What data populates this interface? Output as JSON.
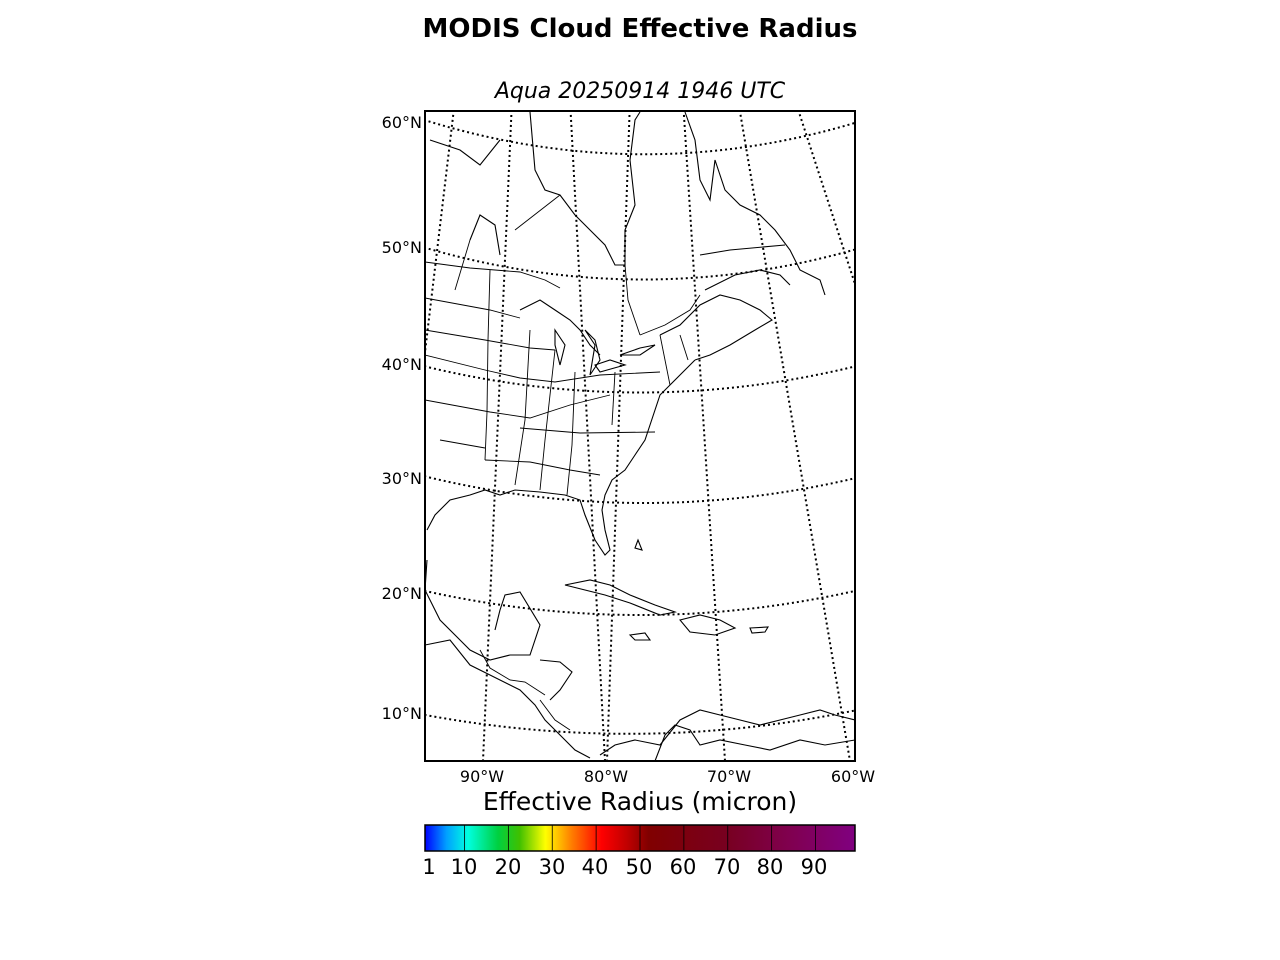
{
  "title": "MODIS Cloud Effective Radius",
  "subtitle": "Aqua 20250914 1946 UTC",
  "map": {
    "projection": "conic",
    "extent": {
      "lon_min": -95,
      "lon_max": -60,
      "lat_min": 6,
      "lat_max": 62
    },
    "lat_labels": [
      "60°N",
      "50°N",
      "40°N",
      "30°N",
      "20°N",
      "10°N"
    ],
    "lon_labels": [
      "90°W",
      "80°W",
      "70°W",
      "60°W"
    ],
    "gridline_style": "dotted",
    "features": [
      "coastlines",
      "country borders",
      "US state borders",
      "Canadian province borders"
    ]
  },
  "colorbar": {
    "label": "Effective Radius (micron)",
    "tick_labels": [
      "1",
      "10",
      "20",
      "30",
      "40",
      "50",
      "60",
      "70",
      "80",
      "90"
    ],
    "range": [
      1,
      99
    ],
    "colors": [
      "#0000ff",
      "#00a0ff",
      "#00ffe0",
      "#00d040",
      "#40c000",
      "#ffff00",
      "#ff8000",
      "#ff0000",
      "#c00000",
      "#800000",
      "#780020",
      "#800050",
      "#800080"
    ]
  }
}
